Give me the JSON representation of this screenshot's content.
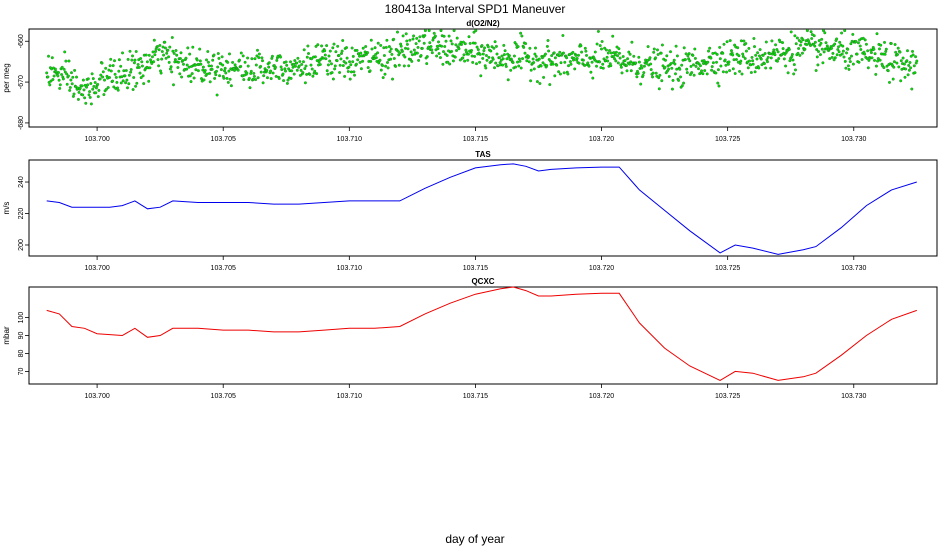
{
  "figure": {
    "title": "180413a   Interval SPD1 Maneuver",
    "xlabel": "day of year"
  },
  "colors": {
    "o2n2": "#00dd00",
    "tas": "#0000ee",
    "qcxc": "#ee0000",
    "axis": "#000000"
  },
  "chart_data": [
    {
      "type": "scatter",
      "title": "d(O2/N2)",
      "ylabel": "per meg",
      "xlim": [
        103.6973,
        103.7333
      ],
      "ylim": [
        -681,
        -657
      ],
      "xticks": [
        103.7,
        103.705,
        103.71,
        103.715,
        103.72,
        103.725,
        103.73
      ],
      "xticklabels": [
        "103.700",
        "103.705",
        "103.710",
        "103.715",
        "103.720",
        "103.725",
        "103.730"
      ],
      "yticks": [
        -680,
        -670,
        -660
      ],
      "yticklabels": [
        "-680",
        "-670",
        "-660"
      ],
      "series": [
        {
          "name": "d(O2/N2)",
          "x_start": 103.698,
          "x_end": 103.7325,
          "trend_x": [
            103.698,
            103.699,
            103.6995,
            103.7,
            103.701,
            103.7015,
            103.702,
            103.7025,
            103.703,
            103.704,
            103.705,
            103.706,
            103.707,
            103.708,
            103.709,
            103.71,
            103.711,
            103.712,
            103.713,
            103.714,
            103.715,
            103.716,
            103.717,
            103.718,
            103.719,
            103.72,
            103.721,
            103.722,
            103.723,
            103.724,
            103.725,
            103.726,
            103.727,
            103.728,
            103.729,
            103.73,
            103.731,
            103.732,
            103.7325
          ],
          "trend_y": [
            -667,
            -670,
            -673,
            -670,
            -668,
            -667,
            -666,
            -663,
            -665,
            -666,
            -666,
            -667,
            -666,
            -666,
            -665,
            -665,
            -664,
            -663,
            -661,
            -662,
            -663,
            -664,
            -664,
            -665,
            -665,
            -664,
            -665,
            -666,
            -667,
            -665,
            -664,
            -664,
            -663,
            -662,
            -662,
            -663,
            -664,
            -666,
            -666
          ],
          "scatter_sd": 2.2
        }
      ]
    },
    {
      "type": "line",
      "title": "TAS",
      "ylabel": "m/s",
      "xlim": [
        103.6973,
        103.7333
      ],
      "ylim": [
        193,
        254
      ],
      "xticks": [
        103.7,
        103.705,
        103.71,
        103.715,
        103.72,
        103.725,
        103.73
      ],
      "xticklabels": [
        "103.700",
        "103.705",
        "103.710",
        "103.715",
        "103.720",
        "103.725",
        "103.730"
      ],
      "yticks": [
        200,
        220,
        240
      ],
      "yticklabels": [
        "200",
        "220",
        "240"
      ],
      "series": [
        {
          "name": "TAS",
          "x": [
            103.698,
            103.6985,
            103.699,
            103.6995,
            103.7,
            103.7005,
            103.701,
            103.7015,
            103.702,
            103.7025,
            103.703,
            103.704,
            103.705,
            103.706,
            103.707,
            103.708,
            103.709,
            103.71,
            103.711,
            103.712,
            103.713,
            103.714,
            103.715,
            103.716,
            103.7165,
            103.717,
            103.7175,
            103.718,
            103.719,
            103.72,
            103.7207,
            103.7215,
            103.7225,
            103.7235,
            103.7247,
            103.7253,
            103.726,
            103.727,
            103.728,
            103.7285,
            103.7295,
            103.7305,
            103.7315,
            103.7325
          ],
          "values": [
            228,
            227,
            224,
            224,
            224,
            224,
            225,
            228,
            223,
            224,
            228,
            227,
            227,
            227,
            226,
            226,
            227,
            228,
            228,
            228,
            236,
            243,
            249,
            251,
            251.5,
            250,
            247,
            248,
            249,
            249.5,
            249.5,
            235,
            222,
            209,
            195,
            200,
            198,
            194,
            197,
            199,
            211,
            225,
            235,
            240
          ]
        }
      ]
    },
    {
      "type": "line",
      "title": "QCXC",
      "ylabel": "mbar",
      "xlim": [
        103.6973,
        103.7333
      ],
      "ylim": [
        63,
        117
      ],
      "xticks": [
        103.7,
        103.705,
        103.71,
        103.715,
        103.72,
        103.725,
        103.73
      ],
      "xticklabels": [
        "103.700",
        "103.705",
        "103.710",
        "103.715",
        "103.720",
        "103.725",
        "103.730"
      ],
      "yticks": [
        70,
        80,
        90,
        100
      ],
      "yticklabels": [
        "70",
        "80",
        "90",
        "100"
      ],
      "series": [
        {
          "name": "QCXC",
          "x": [
            103.698,
            103.6985,
            103.699,
            103.6995,
            103.7,
            103.701,
            103.7015,
            103.702,
            103.7025,
            103.703,
            103.704,
            103.705,
            103.706,
            103.707,
            103.708,
            103.709,
            103.71,
            103.711,
            103.712,
            103.713,
            103.714,
            103.715,
            103.716,
            103.7165,
            103.717,
            103.7175,
            103.718,
            103.719,
            103.72,
            103.7207,
            103.7215,
            103.7225,
            103.7235,
            103.7247,
            103.7253,
            103.726,
            103.727,
            103.728,
            103.7285,
            103.7295,
            103.7305,
            103.7315,
            103.7325
          ],
          "values": [
            104,
            102,
            95,
            94,
            91,
            90,
            94,
            89,
            90,
            94,
            94,
            93,
            93,
            92,
            92,
            93,
            94,
            94,
            95,
            102,
            108,
            113,
            116,
            117,
            115,
            112,
            112,
            113,
            113.5,
            113.5,
            97,
            83,
            73,
            65,
            70,
            69,
            65,
            67,
            69,
            79,
            90,
            99,
            104
          ]
        }
      ]
    }
  ]
}
